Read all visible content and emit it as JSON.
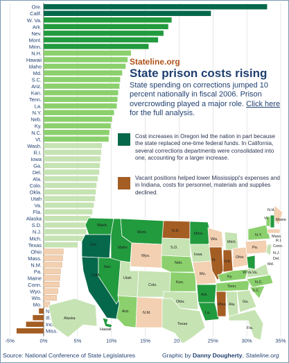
{
  "header": {
    "logo": "Stateline.org",
    "title": "State prison costs rising",
    "subtitle": "State spending on corrections jumped 10 percent nationally in fiscal 2006. Prison overcrowding played a major role.",
    "link_text": "Click here",
    "link_suffix": "for the full analysis."
  },
  "legend": [
    {
      "color": "#05684a",
      "text": "Cost increases in Oregon led the nation in part because the state replaced one-time federal funds. In California, several corrections departments were consolidated into one, accounting for a larger increase."
    },
    {
      "color": "#a45d23",
      "text": "Vacant positions helped lower Mississippi's expenses and in Indiana, costs for personnel, materials and supplies declined."
    }
  ],
  "footer": {
    "source": "Source: National Conference of State Legislatures",
    "credit_prefix": "Graphic by",
    "credit_name": "Danny Dougherty",
    "credit_site": "Stateline.org"
  },
  "colors": {
    "dark_green": "#05684a",
    "mid_green": "#229a3e",
    "light_green": "#8bd06d",
    "pale_green": "#c6e3b3",
    "peach": "#f2d0b1",
    "brown": "#a45d23",
    "ink": "#1f3f70"
  },
  "map_labels": [
    "Wash.",
    "Ore.",
    "Calif.",
    "Nev.",
    "Idaho",
    "Mont.",
    "Wyo.",
    "Utah",
    "Ariz.",
    "Colo.",
    "N.M.",
    "N.D.",
    "S.D.",
    "Neb.",
    "Kan.",
    "Okla.",
    "Texas",
    "Minn.",
    "Iowa",
    "Mo.",
    "Ark.",
    "La.",
    "Wis.",
    "Ill.",
    "Miss.",
    "Mich.",
    "Ind.",
    "Ky.",
    "Tenn.",
    "Ala.",
    "Ohio",
    "Ga.",
    "Fla.",
    "W.Va.",
    "Va.",
    "N.C.",
    "S.C.",
    "Pa.",
    "N.Y.",
    "Maine",
    "Vt.",
    "N.H.",
    "Mass.",
    "R.I.",
    "Conn.",
    "N.J.",
    "Del.",
    "Md.",
    "Alaska",
    "Hawaii"
  ],
  "chart_data": {
    "type": "bar",
    "orientation": "horizontal",
    "categories": [
      "Ore.",
      "Calif.",
      "W. Va.",
      "Ark.",
      "Nev.",
      "Mont.",
      "Minn.",
      "N.H.",
      "Hawaii",
      "Idaho",
      "Md.",
      "S.C.",
      "Ariz.",
      "Kan.",
      "Tenn.",
      "La.",
      "N.Y.",
      "Neb.",
      "Ky.",
      "N.C.",
      "Vt.",
      "Wash.",
      "R.I.",
      "Iowa",
      "Ga.",
      "Del.",
      "Ala.",
      "Colo.",
      "Okla.",
      "Utah",
      "Va.",
      "Fla.",
      "Alaska",
      "S.D.",
      "N.J.",
      "Mich.",
      "Texas",
      "Ohio",
      "Mass.",
      "N.M.",
      "Pa.",
      "Maine",
      "Conn.",
      "Wyo.",
      "Wis.",
      "Mo.",
      "N.D.",
      "Ill.",
      "Ind.",
      "Miss."
    ],
    "values": [
      33,
      24.7,
      18.9,
      18.4,
      17.7,
      16.9,
      15.5,
      12.9,
      12.4,
      12.1,
      11.6,
      11.3,
      11.2,
      11.0,
      10.9,
      10.8,
      10.4,
      10.1,
      9.9,
      9.7,
      9.6,
      8.6,
      8.5,
      8.4,
      8.3,
      8.2,
      8.0,
      7.8,
      7.7,
      7.6,
      7.4,
      7.2,
      6.9,
      6.5,
      6.3,
      6.0,
      5.0,
      2.9,
      2.8,
      2.7,
      2.5,
      2.4,
      2.3,
      2.1,
      1.9,
      0.9,
      -0.7,
      -1.6,
      -2.6,
      -4.0
    ],
    "title": "State prison costs rising",
    "xlim": [
      -5,
      35
    ],
    "xticks": [
      "-5%",
      "0%",
      "5%",
      "10%",
      "15%",
      "20%",
      "25%",
      "30%",
      "35%"
    ],
    "grid": true
  }
}
